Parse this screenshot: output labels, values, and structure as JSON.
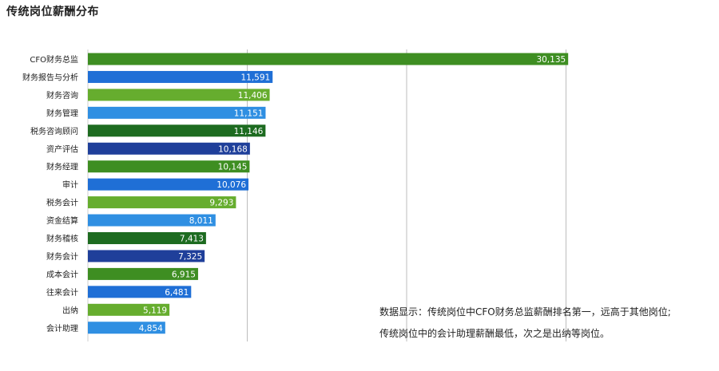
{
  "chart_data": {
    "type": "bar",
    "orientation": "horizontal",
    "title": "传统岗位薪酬分布",
    "xlabel": "",
    "ylabel": "",
    "xlim": [
      0,
      40000
    ],
    "grid": true,
    "categories": [
      "CFO财务总监",
      "财务报告与分析",
      "财务咨询",
      "财务管理",
      "税务咨询顾问",
      "资产评估",
      "财务经理",
      "审计",
      "税务会计",
      "资金结算",
      "财务稽核",
      "财务会计",
      "成本会计",
      "往来会计",
      "出纳",
      "会计助理"
    ],
    "values": [
      30135,
      11591,
      11406,
      11151,
      11146,
      10168,
      10145,
      10076,
      9293,
      8011,
      7413,
      7325,
      6915,
      6481,
      5119,
      4854
    ],
    "value_labels": [
      "30,135",
      "11,591",
      "11,406",
      "11,151",
      "11,146",
      "10,168",
      "10,145",
      "10,076",
      "9,293",
      "8,011",
      "7,413",
      "7,325",
      "6,915",
      "6,481",
      "5,119",
      "4,854"
    ],
    "colors": [
      "#3e8e22",
      "#1f6fd6",
      "#66ad2e",
      "#2f8fe2",
      "#1d6b20",
      "#1f3f9a",
      "#3e8e22",
      "#1f6fd6",
      "#66ad2e",
      "#2f8fe2",
      "#1d6b20",
      "#1f3f9a",
      "#3e8e22",
      "#1f6fd6",
      "#66ad2e",
      "#2f8fe2"
    ]
  },
  "annotation": {
    "line1": "数据显示：传统岗位中CFO财务总监薪酬排名第一，远高于其他岗位;",
    "line2": "传统岗位中的会计助理薪酬最低，次之是出纳等岗位。"
  }
}
